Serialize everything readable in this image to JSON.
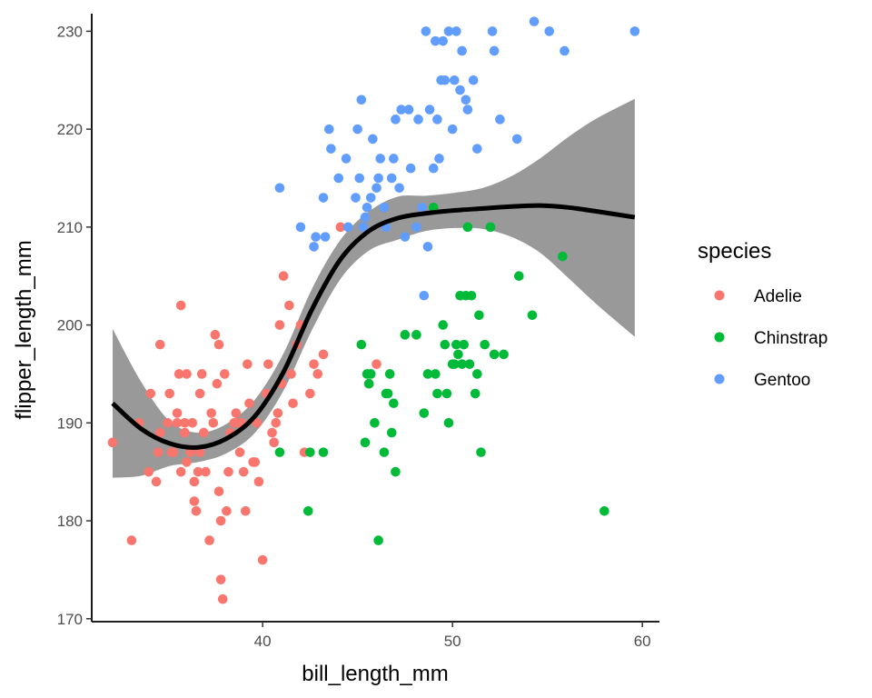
{
  "chart_data": {
    "type": "scatter",
    "xlabel": "bill_length_mm",
    "ylabel": "flipper_length_mm",
    "xlim": [
      31.0,
      60.9
    ],
    "ylim": [
      169.7,
      231.8
    ],
    "xticks": [
      40,
      50,
      60
    ],
    "yticks": [
      170,
      180,
      190,
      200,
      210,
      220,
      230
    ],
    "grid": false,
    "legend": {
      "title": "species",
      "placement": "right"
    },
    "series": [
      {
        "name": "Adelie",
        "color": "#F8766D",
        "points": [
          [
            32.1,
            188
          ],
          [
            33.1,
            178
          ],
          [
            33.5,
            190
          ],
          [
            34.0,
            185
          ],
          [
            34.1,
            193
          ],
          [
            34.4,
            184
          ],
          [
            34.5,
            187
          ],
          [
            34.6,
            198
          ],
          [
            34.6,
            189
          ],
          [
            35.0,
            190
          ],
          [
            35.1,
            193
          ],
          [
            35.2,
            187
          ],
          [
            35.3,
            187
          ],
          [
            35.5,
            190
          ],
          [
            35.5,
            191
          ],
          [
            35.6,
            195
          ],
          [
            35.7,
            185
          ],
          [
            35.7,
            202
          ],
          [
            35.9,
            190
          ],
          [
            35.9,
            189
          ],
          [
            36.0,
            195
          ],
          [
            36.0,
            186
          ],
          [
            36.2,
            187
          ],
          [
            36.3,
            190
          ],
          [
            36.4,
            184
          ],
          [
            36.4,
            182
          ],
          [
            36.5,
            181
          ],
          [
            36.6,
            185
          ],
          [
            36.7,
            187
          ],
          [
            36.7,
            193
          ],
          [
            36.8,
            195
          ],
          [
            36.9,
            189
          ],
          [
            37.0,
            185
          ],
          [
            37.2,
            178
          ],
          [
            37.3,
            191
          ],
          [
            37.4,
            190
          ],
          [
            37.5,
            199
          ],
          [
            37.6,
            194
          ],
          [
            37.7,
            198
          ],
          [
            37.7,
            183
          ],
          [
            37.8,
            174
          ],
          [
            37.8,
            180
          ],
          [
            37.9,
            172
          ],
          [
            38.0,
            195
          ],
          [
            38.1,
            181
          ],
          [
            38.2,
            185
          ],
          [
            38.3,
            189
          ],
          [
            38.5,
            190
          ],
          [
            38.6,
            191
          ],
          [
            38.7,
            190
          ],
          [
            38.8,
            187
          ],
          [
            38.9,
            190
          ],
          [
            39.0,
            185
          ],
          [
            39.1,
            181
          ],
          [
            39.2,
            196
          ],
          [
            39.3,
            192
          ],
          [
            39.5,
            186
          ],
          [
            39.6,
            186
          ],
          [
            39.7,
            190
          ],
          [
            39.8,
            184
          ],
          [
            40.0,
            176
          ],
          [
            40.2,
            193
          ],
          [
            40.3,
            196
          ],
          [
            40.5,
            189
          ],
          [
            40.6,
            188
          ],
          [
            40.7,
            190
          ],
          [
            40.8,
            191
          ],
          [
            40.9,
            200
          ],
          [
            41.0,
            194
          ],
          [
            41.1,
            205
          ],
          [
            41.4,
            202
          ],
          [
            41.5,
            195
          ],
          [
            41.6,
            192
          ],
          [
            41.8,
            198
          ],
          [
            42.0,
            200
          ],
          [
            42.2,
            187
          ],
          [
            42.5,
            193
          ],
          [
            42.7,
            196
          ],
          [
            42.9,
            195
          ],
          [
            43.2,
            197
          ],
          [
            44.1,
            210
          ],
          [
            45.6,
            194
          ],
          [
            46.0,
            196
          ]
        ]
      },
      {
        "name": "Chinstrap",
        "color": "#00BA38",
        "points": [
          [
            40.9,
            187
          ],
          [
            42.4,
            181
          ],
          [
            42.5,
            187
          ],
          [
            43.2,
            187
          ],
          [
            45.2,
            198
          ],
          [
            45.4,
            188
          ],
          [
            45.5,
            195
          ],
          [
            45.6,
            194
          ],
          [
            45.7,
            195
          ],
          [
            45.9,
            190
          ],
          [
            46.1,
            178
          ],
          [
            46.4,
            187
          ],
          [
            46.5,
            193
          ],
          [
            46.6,
            193
          ],
          [
            46.7,
            195
          ],
          [
            46.8,
            189
          ],
          [
            46.9,
            192
          ],
          [
            47.0,
            185
          ],
          [
            47.5,
            199
          ],
          [
            48.1,
            199
          ],
          [
            48.5,
            191
          ],
          [
            48.7,
            195
          ],
          [
            49.0,
            212
          ],
          [
            49.1,
            195
          ],
          [
            49.2,
            193
          ],
          [
            49.5,
            200
          ],
          [
            49.6,
            198
          ],
          [
            49.7,
            193
          ],
          [
            49.8,
            190
          ],
          [
            50.0,
            196
          ],
          [
            50.1,
            196
          ],
          [
            50.2,
            198
          ],
          [
            50.3,
            197
          ],
          [
            50.4,
            203
          ],
          [
            50.5,
            196
          ],
          [
            50.6,
            198
          ],
          [
            50.7,
            203
          ],
          [
            50.8,
            210
          ],
          [
            50.9,
            196
          ],
          [
            51.0,
            203
          ],
          [
            51.2,
            193
          ],
          [
            51.3,
            195
          ],
          [
            51.4,
            201
          ],
          [
            51.5,
            187
          ],
          [
            51.7,
            198
          ],
          [
            52.0,
            210
          ],
          [
            52.2,
            197
          ],
          [
            52.7,
            197
          ],
          [
            53.5,
            205
          ],
          [
            54.2,
            201
          ],
          [
            55.8,
            207
          ],
          [
            58.0,
            181
          ]
        ]
      },
      {
        "name": "Gentoo",
        "color": "#619CFF",
        "points": [
          [
            40.9,
            214
          ],
          [
            42.0,
            210
          ],
          [
            42.7,
            208
          ],
          [
            42.8,
            209
          ],
          [
            43.2,
            213
          ],
          [
            43.3,
            209
          ],
          [
            43.5,
            220
          ],
          [
            43.6,
            218
          ],
          [
            44.0,
            215
          ],
          [
            44.4,
            217
          ],
          [
            44.5,
            210
          ],
          [
            44.9,
            213
          ],
          [
            45.0,
            220
          ],
          [
            45.1,
            215
          ],
          [
            45.2,
            223
          ],
          [
            45.3,
            210
          ],
          [
            45.4,
            211
          ],
          [
            45.5,
            212
          ],
          [
            45.7,
            213
          ],
          [
            45.8,
            219
          ],
          [
            46.0,
            214
          ],
          [
            46.1,
            215
          ],
          [
            46.2,
            217
          ],
          [
            46.4,
            212
          ],
          [
            46.5,
            210
          ],
          [
            46.8,
            215
          ],
          [
            46.9,
            217
          ],
          [
            47.0,
            221
          ],
          [
            47.2,
            214
          ],
          [
            47.3,
            222
          ],
          [
            47.5,
            209
          ],
          [
            47.7,
            222
          ],
          [
            47.8,
            216
          ],
          [
            48.1,
            210
          ],
          [
            48.2,
            221
          ],
          [
            48.4,
            212
          ],
          [
            48.5,
            203
          ],
          [
            48.6,
            230
          ],
          [
            48.7,
            208
          ],
          [
            48.8,
            222
          ],
          [
            49.0,
            216
          ],
          [
            49.1,
            229
          ],
          [
            49.2,
            221
          ],
          [
            49.3,
            217
          ],
          [
            49.4,
            225
          ],
          [
            49.5,
            229
          ],
          [
            49.6,
            225
          ],
          [
            49.8,
            230
          ],
          [
            50.0,
            220
          ],
          [
            50.1,
            225
          ],
          [
            50.2,
            230
          ],
          [
            50.4,
            224
          ],
          [
            50.5,
            228
          ],
          [
            50.7,
            223
          ],
          [
            50.8,
            222
          ],
          [
            51.1,
            225
          ],
          [
            51.3,
            218
          ],
          [
            52.1,
            230
          ],
          [
            52.2,
            228
          ],
          [
            52.5,
            221
          ],
          [
            53.4,
            219
          ],
          [
            54.3,
            231
          ],
          [
            55.1,
            230
          ],
          [
            55.9,
            228
          ],
          [
            59.6,
            230
          ]
        ]
      }
    ],
    "smooth": {
      "color": "#000000",
      "ribbon_color": "#999999",
      "x": [
        32.1,
        33.6,
        35.1,
        36.6,
        38.1,
        39.6,
        41.1,
        42.6,
        44.1,
        45.6,
        47.1,
        48.6,
        50.1,
        51.6,
        53.1,
        54.6,
        56.1,
        57.6,
        59.6
      ],
      "y": [
        192.0,
        189.4,
        187.9,
        187.5,
        188.4,
        190.7,
        195.2,
        201.6,
        206.7,
        209.6,
        210.9,
        211.4,
        211.7,
        211.9,
        212.1,
        212.2,
        212.0,
        211.6,
        211.0
      ],
      "lower": [
        184.4,
        184.6,
        185.6,
        186.0,
        186.9,
        189.0,
        193.3,
        199.5,
        204.7,
        207.6,
        208.7,
        209.6,
        209.9,
        209.8,
        209.0,
        207.4,
        204.8,
        202.1,
        198.8
      ],
      "upper": [
        199.6,
        194.2,
        190.2,
        189.0,
        189.9,
        192.4,
        197.1,
        203.7,
        208.7,
        211.6,
        213.1,
        213.2,
        213.5,
        214.0,
        215.2,
        217.0,
        219.2,
        221.1,
        223.1
      ]
    }
  }
}
